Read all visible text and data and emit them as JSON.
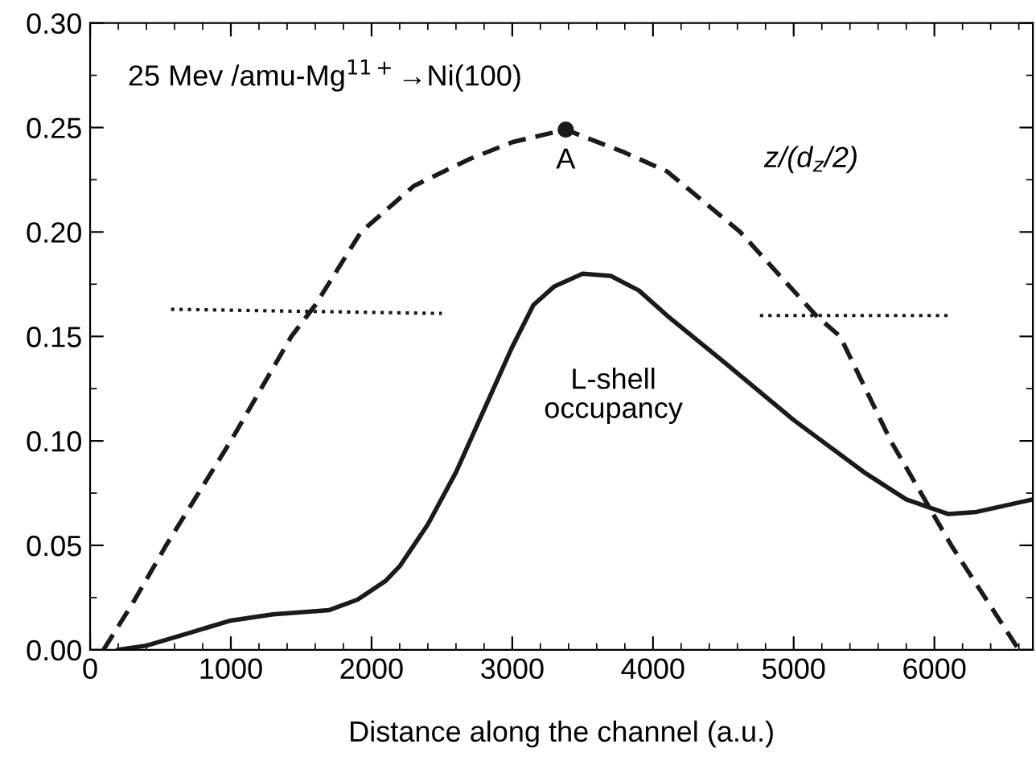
{
  "chart_data": {
    "type": "line",
    "xlabel": "Distance along the channel (a.u.)",
    "xlim": [
      0,
      6700
    ],
    "ylim": [
      0,
      0.3
    ],
    "xticks": [
      0,
      1000,
      2000,
      3000,
      4000,
      5000,
      6000
    ],
    "yticks": [
      {
        "value": 0,
        "label": "0.00"
      },
      0.05,
      {
        "value": 0.1,
        "label": "0.10"
      },
      0.15,
      {
        "value": 0.2,
        "label": "0.20"
      },
      0.25,
      {
        "value": 0.3,
        "label": "0.30"
      }
    ],
    "grid": false,
    "legend": false,
    "series": [
      {
        "color": "#1a1a1a",
        "line_style": "dashed",
        "x": [
          95,
          300,
          540,
          1000,
          1430,
          1600,
          1925,
          2300,
          2700,
          3000,
          3380,
          3800,
          4100,
          4620,
          5160,
          5330,
          5690,
          6120,
          6600
        ],
        "values": [
          0,
          0.022,
          0.05,
          0.1,
          0.15,
          0.165,
          0.2,
          0.222,
          0.235,
          0.243,
          0.249,
          0.238,
          0.229,
          0.2,
          0.16,
          0.15,
          0.1,
          0.05,
          0
        ]
      },
      {
        "color": "#1a1a1a",
        "line_style": "solid",
        "x": [
          200,
          400,
          700,
          1000,
          1300,
          1700,
          1900,
          2100,
          2200,
          2400,
          2600,
          2800,
          3000,
          3150,
          3300,
          3500,
          3700,
          3900,
          4100,
          4500,
          5000,
          5500,
          5800,
          6100,
          6300,
          6500,
          6700
        ],
        "values": [
          0,
          0.002,
          0.008,
          0.014,
          0.017,
          0.019,
          0.024,
          0.033,
          0.04,
          0.06,
          0.085,
          0.115,
          0.145,
          0.165,
          0.174,
          0.18,
          0.179,
          0.172,
          0.16,
          0.138,
          0.11,
          0.085,
          0.072,
          0.065,
          0.066,
          0.069,
          0.072
        ]
      },
      {
        "color": "#1a1a1a",
        "line_style": "dotted",
        "x": [
          575,
          2500
        ],
        "values": [
          0.163,
          0.161
        ]
      },
      {
        "color": "#1a1a1a",
        "line_style": "dotted",
        "x": [
          4760,
          6100
        ],
        "values": [
          0.16,
          0.16
        ]
      },
      {
        "type": "scatter",
        "color": "#1a1a1a",
        "marker": "circle",
        "x": [
          3380
        ],
        "values": [
          0.249
        ]
      }
    ],
    "annotations": [
      "25 Mev /amu-Mg$^{11+}$→Ni(100)",
      {
        "text": "A",
        "x": 3380,
        "y": 0.249
      },
      "z/(d$_{z}$/2)",
      "L-shell\noccupancy"
    ]
  }
}
